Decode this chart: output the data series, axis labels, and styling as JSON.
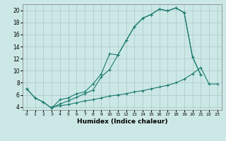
{
  "xlabel": "Humidex (Indice chaleur)",
  "xlim": [
    -0.5,
    23.5
  ],
  "ylim": [
    3.5,
    21.0
  ],
  "yticks": [
    4,
    6,
    8,
    10,
    12,
    14,
    16,
    18,
    20
  ],
  "xticks": [
    0,
    1,
    2,
    3,
    4,
    5,
    6,
    7,
    8,
    9,
    10,
    11,
    12,
    13,
    14,
    15,
    16,
    17,
    18,
    19,
    20,
    21,
    22,
    23
  ],
  "bg_color": "#cce8e6",
  "grid_color": "#aac8c5",
  "line_color": "#1a7a6e",
  "line1_x": [
    0,
    1,
    2,
    3,
    4,
    5,
    6,
    7,
    8,
    9,
    10,
    11,
    12,
    13,
    14,
    15,
    16,
    17,
    18,
    19,
    20,
    21
  ],
  "line1_y": [
    7.0,
    5.5,
    4.8,
    3.8,
    5.2,
    5.5,
    6.2,
    6.5,
    7.8,
    9.5,
    12.8,
    12.6,
    15.0,
    17.3,
    18.7,
    19.3,
    20.2,
    19.9,
    20.4,
    19.6,
    12.3,
    9.3
  ],
  "line2_x": [
    0,
    1,
    2,
    3,
    4,
    5,
    6,
    7,
    8,
    9,
    10,
    11,
    12,
    13,
    14,
    15,
    16,
    17,
    18,
    19,
    20,
    21
  ],
  "line2_y": [
    7.0,
    5.5,
    4.8,
    3.8,
    4.5,
    5.0,
    5.6,
    6.2,
    6.8,
    9.0,
    10.2,
    12.6,
    15.0,
    17.3,
    18.7,
    19.3,
    20.2,
    19.9,
    20.4,
    19.6,
    12.3,
    9.3
  ],
  "line3_x": [
    3,
    4,
    5,
    6,
    7,
    8,
    9,
    10,
    11,
    12,
    13,
    14,
    15,
    16,
    17,
    18,
    19,
    20,
    21,
    22,
    23
  ],
  "line3_y": [
    4.0,
    4.2,
    4.4,
    4.7,
    5.0,
    5.2,
    5.5,
    5.8,
    6.0,
    6.2,
    6.5,
    6.7,
    7.0,
    7.3,
    7.6,
    8.0,
    8.6,
    9.5,
    10.5,
    7.8,
    7.8
  ]
}
